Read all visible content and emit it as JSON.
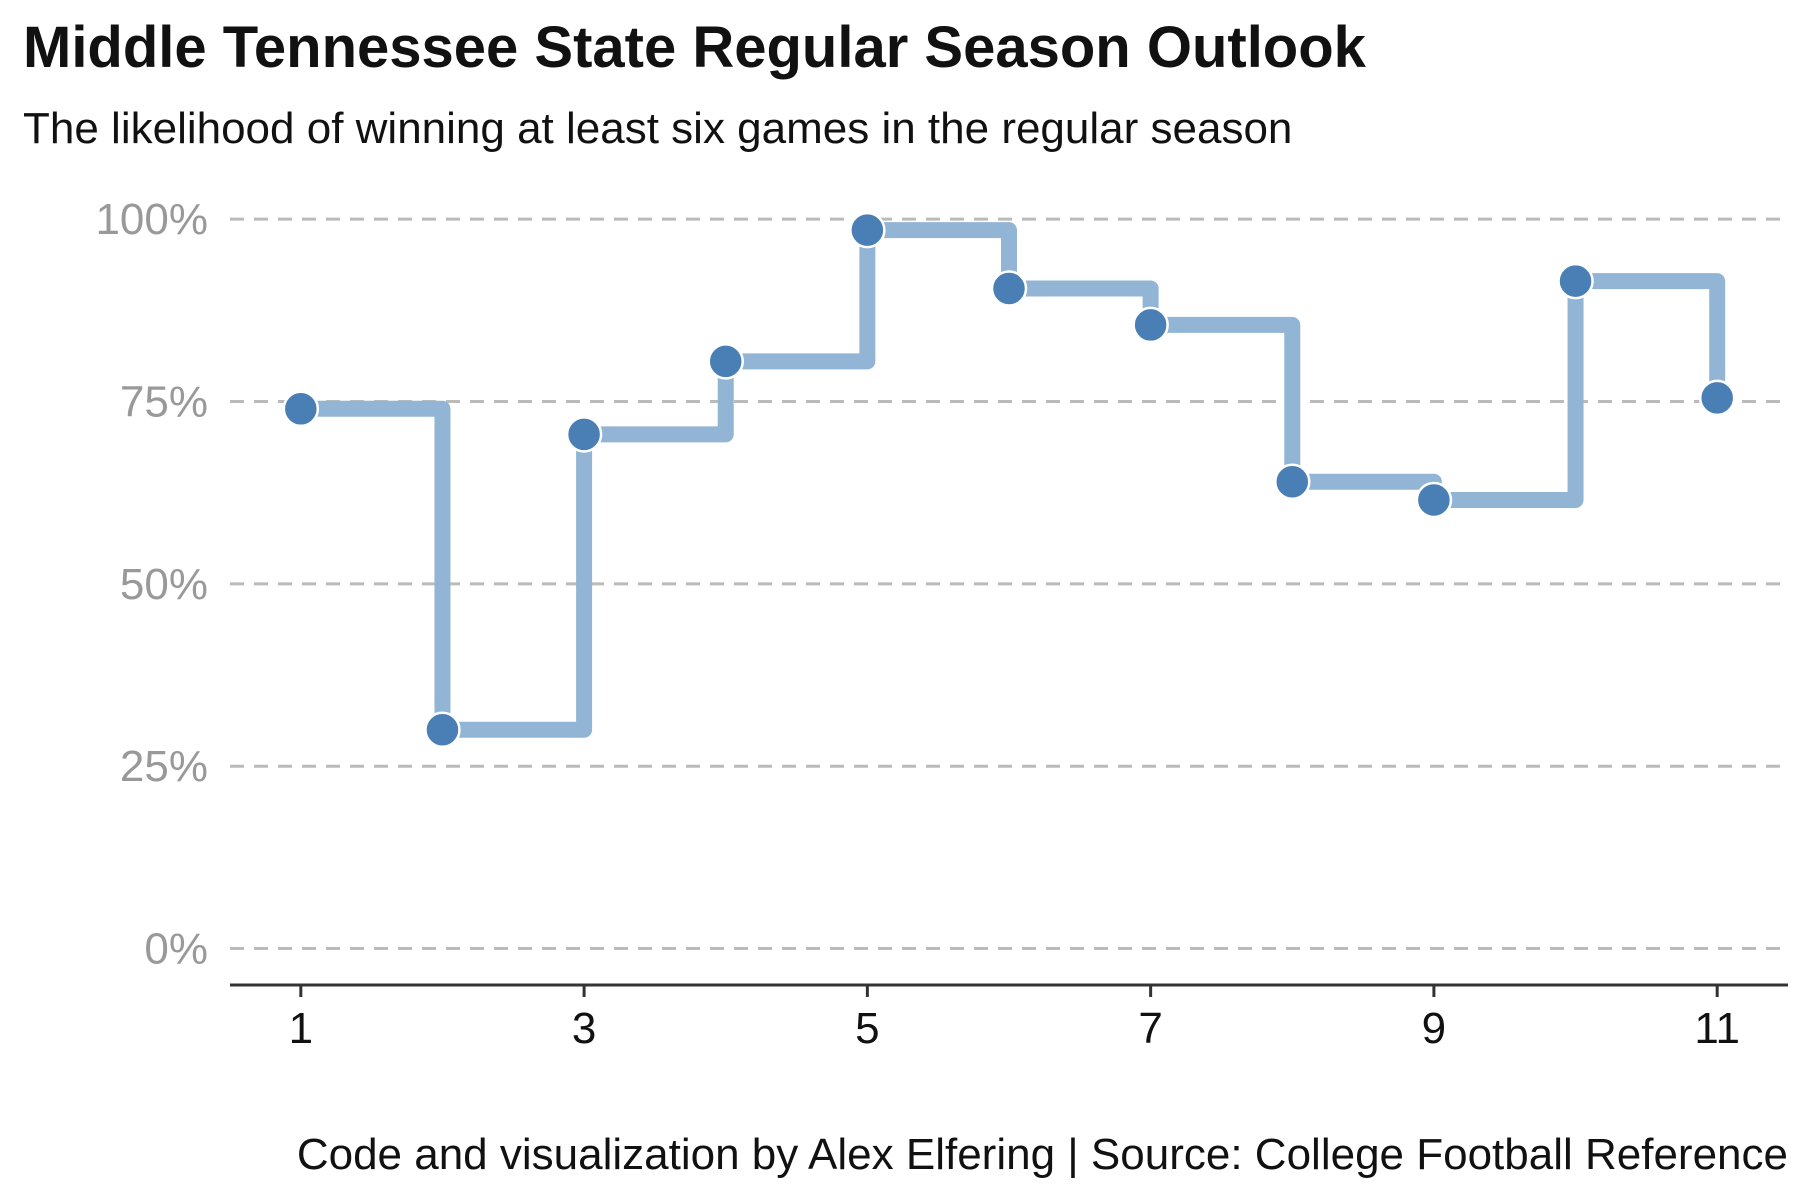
{
  "title": "Middle Tennessee State Regular Season Outlook",
  "subtitle": "The likelihood of winning at least six games in the regular season",
  "caption": "Code and visualization by Alex Elfering | Source: College Football Reference",
  "colors": {
    "point": "#4a7fb5",
    "step_line": "#93b5d5",
    "grid": "#bbbbbb",
    "axis": "#333333",
    "y_tick_text": "#999999"
  },
  "chart_data": {
    "type": "line",
    "style": "step",
    "x": [
      1,
      2,
      3,
      4,
      5,
      6,
      7,
      8,
      9,
      10,
      11
    ],
    "values": [
      74,
      30,
      70.5,
      80.5,
      98.5,
      90.5,
      85.5,
      64,
      61.5,
      91.5,
      75.5
    ],
    "xlim": [
      0.5,
      11.5
    ],
    "ylim": [
      -5,
      104
    ],
    "x_ticks": [
      1,
      3,
      5,
      7,
      9,
      11
    ],
    "x_tick_labels": [
      "1",
      "3",
      "5",
      "7",
      "9",
      "11"
    ],
    "y_ticks": [
      0,
      25,
      50,
      75,
      100
    ],
    "y_tick_labels": [
      "0%",
      "25%",
      "50%",
      "75%",
      "100%"
    ],
    "grid": "horizontal-dashed",
    "legend": "none"
  }
}
